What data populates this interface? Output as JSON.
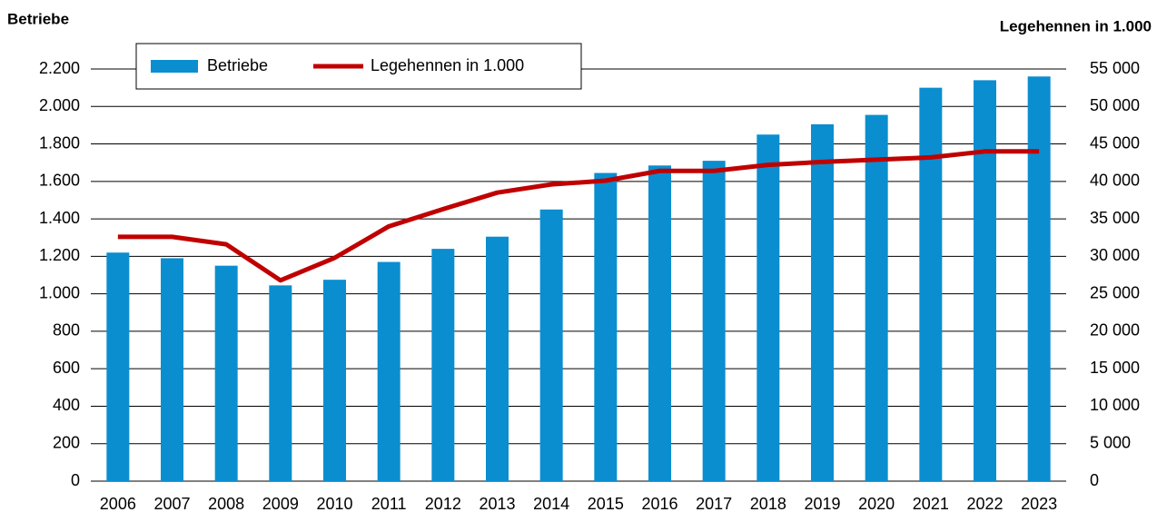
{
  "chart_data": {
    "type": "bar",
    "ylabel": "Betriebe",
    "y2label": "Legehennen in 1.000",
    "categories": [
      "2006",
      "2007",
      "2008",
      "2009",
      "2010",
      "2011",
      "2012",
      "2013",
      "2014",
      "2015",
      "2016",
      "2017",
      "2018",
      "2019",
      "2020",
      "2021",
      "2022",
      "2023"
    ],
    "series": [
      {
        "name": "Betriebe",
        "type": "bar",
        "color": "#0a8ed0",
        "values": [
          1220,
          1190,
          1150,
          1045,
          1075,
          1170,
          1240,
          1305,
          1450,
          1645,
          1685,
          1710,
          1850,
          1905,
          1955,
          2100,
          2140,
          2160
        ]
      },
      {
        "name": "Legehennen in 1.000",
        "type": "line",
        "axis": "y2",
        "color": "#c00000",
        "values": [
          32600,
          32600,
          31600,
          26800,
          29800,
          34000,
          36300,
          38500,
          39600,
          40100,
          41400,
          41400,
          42200,
          42600,
          42900,
          43200,
          44000,
          44000
        ]
      }
    ],
    "ylim": [
      0,
      2200
    ],
    "yticks": [
      0,
      200,
      400,
      600,
      800,
      {
        "value": 1000,
        "label": "1.000"
      },
      {
        "value": 1200,
        "label": "1.200"
      },
      {
        "value": 1400,
        "label": "1.400"
      },
      {
        "value": 1600,
        "label": "1.600"
      },
      {
        "value": 1800,
        "label": "1.800"
      },
      {
        "value": 2000,
        "label": "2.000"
      },
      {
        "value": 2200,
        "label": "2.200"
      }
    ],
    "y2lim": [
      0,
      55000
    ],
    "y2ticks": [
      0,
      {
        "value": 5000,
        "label": "5 000"
      },
      {
        "value": 10000,
        "label": "10 000"
      },
      {
        "value": 15000,
        "label": "15 000"
      },
      {
        "value": 20000,
        "label": "20 000"
      },
      {
        "value": 25000,
        "label": "25 000"
      },
      {
        "value": 30000,
        "label": "30 000"
      },
      {
        "value": 35000,
        "label": "35 000"
      },
      {
        "value": 40000,
        "label": "40 000"
      },
      {
        "value": 45000,
        "label": "45 000"
      },
      {
        "value": 50000,
        "label": "50 000"
      },
      {
        "value": 55000,
        "label": "55 000"
      }
    ],
    "grid": true
  }
}
